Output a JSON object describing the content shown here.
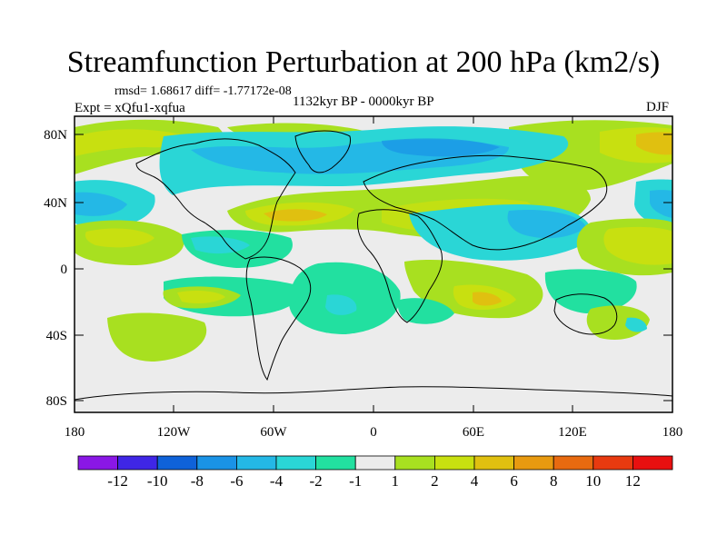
{
  "title": "Streamfunction Perturbation at 200 hPa (km2/s)",
  "stats": "rmsd= 1.68617 diff= -1.77172e-08",
  "experiment": "Expt = xQfu1-xqfua",
  "period": "1132kyr BP - 0000kyr BP",
  "season": "DJF",
  "lat_labels": [
    "80N",
    "40N",
    "0",
    "40S",
    "80S"
  ],
  "lon_labels": [
    "180",
    "120W",
    "60W",
    "0",
    "60E",
    "120E",
    "180"
  ],
  "colorbar": {
    "labels": [
      "-12",
      "-10",
      "-8",
      "-6",
      "-4",
      "-2",
      "-1",
      "1",
      "2",
      "4",
      "6",
      "8",
      "10",
      "12"
    ],
    "colors": [
      "#8a17e6",
      "#3f26e6",
      "#0f62d9",
      "#1a93e6",
      "#24b8e6",
      "#2ad6d6",
      "#22e0a0",
      "#ececec",
      "#a8e020",
      "#c8e010",
      "#e0c010",
      "#e89a10",
      "#e86a10",
      "#e83a10",
      "#e81010"
    ]
  },
  "palette": {
    "background": "#ececec",
    "neg1": "#22e0a0",
    "neg2": "#2ad6d6",
    "neg3": "#24b8e6",
    "pos1": "#a8e020",
    "pos2": "#c8e010",
    "pos3": "#e0c010",
    "pos4": "#e89a10"
  }
}
